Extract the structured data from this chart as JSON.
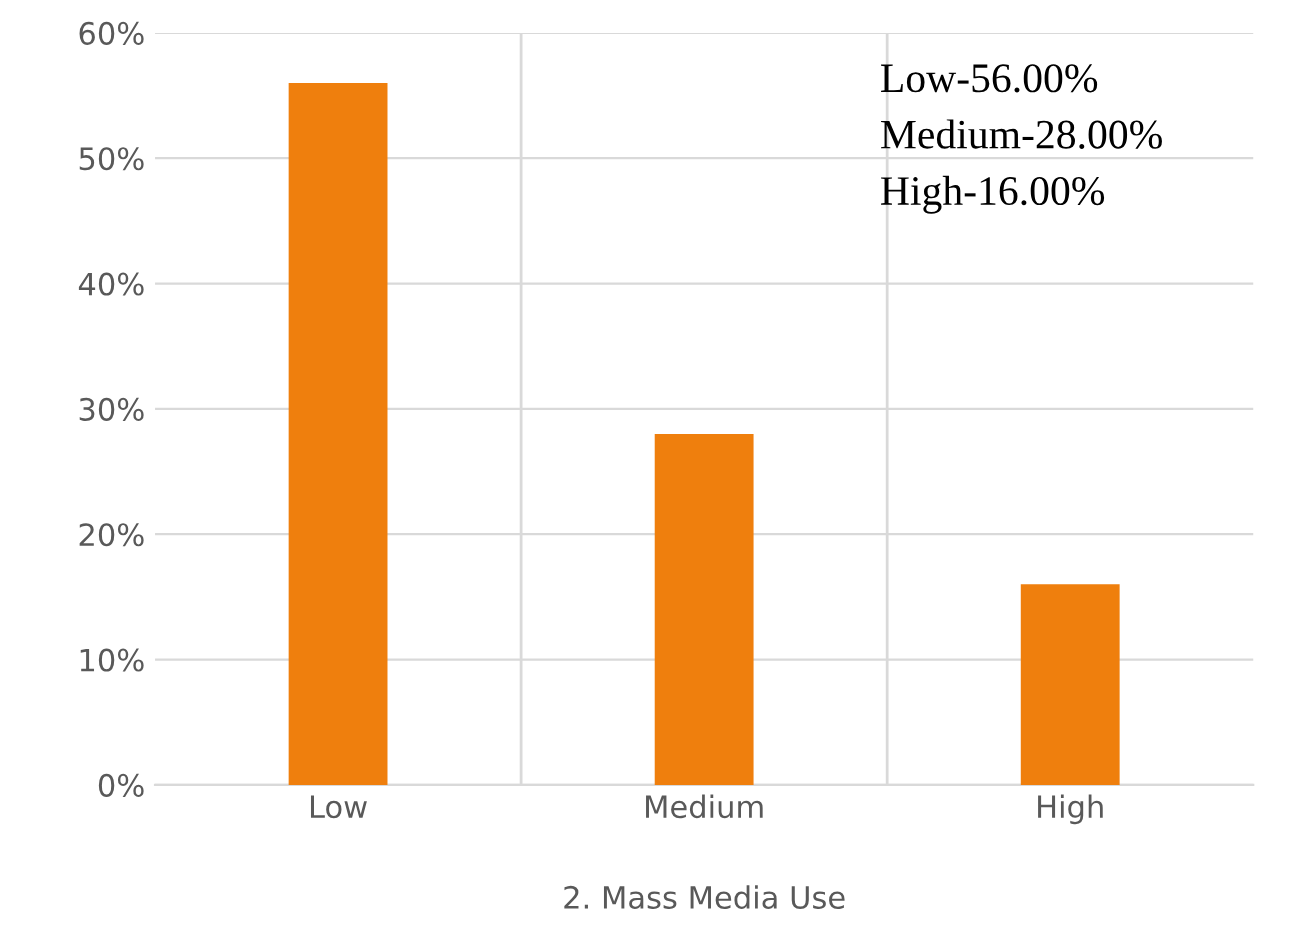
{
  "chart_data": {
    "type": "bar",
    "xlabel": "2. Mass Media Use",
    "categories": [
      "Low",
      "Medium",
      "High"
    ],
    "values": [
      56,
      28,
      16
    ],
    "color": "#ef7f0d",
    "ylim": [
      0,
      60
    ],
    "yticks": [
      {
        "value": 0,
        "label": "0%"
      },
      {
        "value": 10,
        "label": "10%"
      },
      {
        "value": 20,
        "label": "20%"
      },
      {
        "value": 30,
        "label": "30%"
      },
      {
        "value": 40,
        "label": "40%"
      },
      {
        "value": 50,
        "label": "50%"
      },
      {
        "value": 60,
        "label": "60%"
      }
    ],
    "grid": true,
    "annotations": [
      "Low-56.00%",
      "Medium-28.00%",
      "High-16.00%"
    ]
  }
}
